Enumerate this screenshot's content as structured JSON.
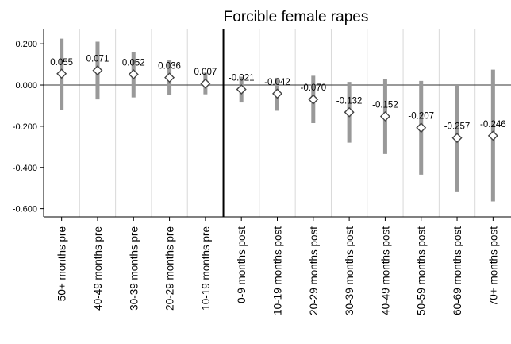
{
  "chart_data": {
    "type": "scatter",
    "title": "Forcible female rapes",
    "xlabel": "",
    "ylabel": "",
    "ylim": [
      -0.64,
      0.27
    ],
    "yticks": [
      0.2,
      0.0,
      -0.2,
      -0.4,
      -0.6
    ],
    "ytick_labels": [
      "0.200",
      "0.000",
      "-0.200",
      "-0.400",
      "-0.600"
    ],
    "categories": [
      "50+ months pre",
      "40-49 months pre",
      "30-39 months pre",
      "20-29 months pre",
      "10-19 months pre",
      "0-9 months post",
      "10-19 months post",
      "20-29 months post",
      "30-39 months post",
      "40-49 months post",
      "50-59 months post",
      "60-69 months post",
      "70+ months post"
    ],
    "values": [
      0.055,
      0.071,
      0.052,
      0.036,
      0.007,
      -0.021,
      -0.042,
      -0.07,
      -0.132,
      -0.152,
      -0.207,
      -0.257,
      -0.246
    ],
    "value_labels": [
      "0.055",
      "0.071",
      "0.052",
      "0.036",
      "0.007",
      "-0.021",
      "-0.042",
      "-0.070",
      "-0.132",
      "-0.152",
      "-0.207",
      "-0.257",
      "-0.246"
    ],
    "ci_low": [
      -0.12,
      -0.07,
      -0.06,
      -0.05,
      -0.045,
      -0.085,
      -0.125,
      -0.185,
      -0.28,
      -0.335,
      -0.435,
      -0.52,
      -0.565
    ],
    "ci_high": [
      0.225,
      0.21,
      0.16,
      0.12,
      0.06,
      0.04,
      0.035,
      0.045,
      0.015,
      0.03,
      0.02,
      0.0,
      0.075
    ],
    "reference_line_y": 0,
    "event_boundary_after_category": "10-19 months pre",
    "grid": "vertical",
    "legend": "none",
    "colors": {
      "ci": "#999999",
      "marker_edge": "#444444",
      "grid": "#d9d9d9",
      "axis": "#000000"
    }
  }
}
